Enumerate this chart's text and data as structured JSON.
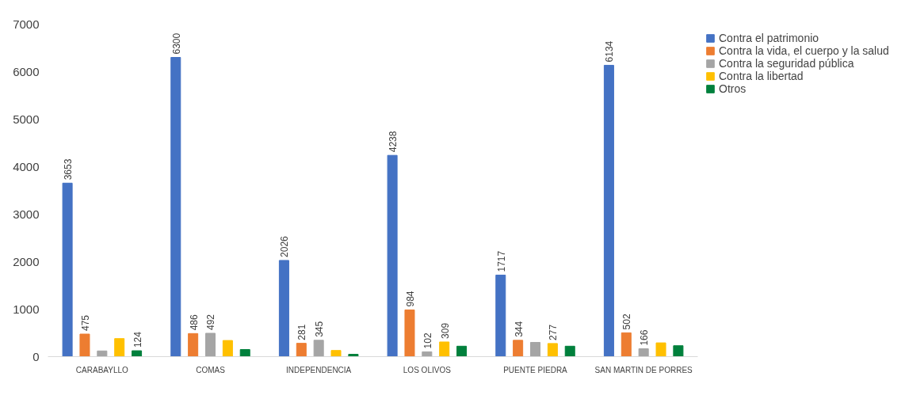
{
  "chart_data": {
    "type": "bar",
    "categories": [
      "CARABAYLLO",
      "COMAS",
      "INDEPENDENCIA",
      "LOS OLIVOS",
      "PUENTE PIEDRA",
      "SAN MARTIN DE PORRES"
    ],
    "series": [
      {
        "name": "Contra el patrimonio",
        "color": "#4472c4",
        "values": [
          3653,
          6300,
          2026,
          4238,
          1717,
          6134
        ],
        "value_labels": [
          "3653",
          "6300",
          "2026",
          "4238",
          "1717",
          "6134"
        ]
      },
      {
        "name": "Contra la vida, el cuerpo y la salud",
        "color": "#ed7d31",
        "values": [
          475,
          486,
          281,
          984,
          344,
          502
        ],
        "value_labels": [
          "475",
          "486",
          "281",
          "984",
          "344",
          "502"
        ]
      },
      {
        "name": "Contra la seguridad pública",
        "color": "#a5a5a5",
        "values": [
          120,
          492,
          345,
          102,
          300,
          166
        ],
        "value_labels": [
          null,
          "492",
          "345",
          "102",
          null,
          "166"
        ]
      },
      {
        "name": "Contra la libertad",
        "color": "#ffc000",
        "values": [
          380,
          340,
          130,
          309,
          277,
          290
        ],
        "value_labels": [
          null,
          null,
          null,
          "309",
          "277",
          null
        ]
      },
      {
        "name": "Otros",
        "color": "#00803c",
        "values": [
          124,
          150,
          50,
          220,
          220,
          230
        ],
        "value_labels": [
          "124",
          null,
          null,
          null,
          null,
          null
        ]
      }
    ],
    "ylim": [
      0,
      7000
    ],
    "yticks": [
      0,
      1000,
      2000,
      3000,
      4000,
      5000,
      6000,
      7000
    ],
    "grid": false,
    "legend": "right"
  }
}
